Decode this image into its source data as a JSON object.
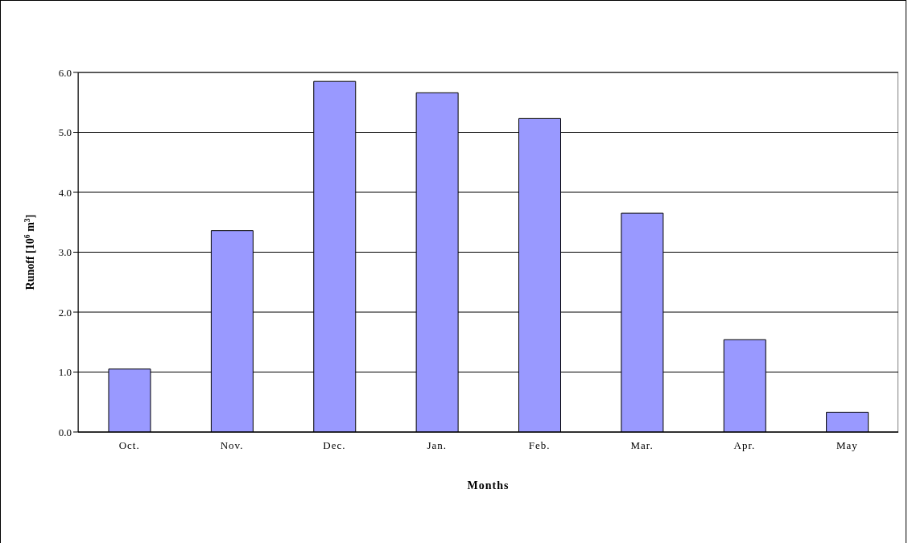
{
  "chart_data": {
    "type": "bar",
    "xlabel": "Months",
    "ylabel": "Runoff [10$^{6}$ m$^{3}$]",
    "categories": [
      "Oct.",
      "Nov.",
      "Dec.",
      "Jan.",
      "Feb.",
      "Mar.",
      "Apr.",
      "May"
    ],
    "values": [
      1.05,
      3.36,
      5.85,
      5.66,
      5.23,
      3.65,
      1.54,
      0.33
    ],
    "color": "#9999ff",
    "ylim": [
      0,
      6
    ],
    "yticks": [
      {
        "value": 0,
        "label": "0.0"
      },
      {
        "value": 1,
        "label": "1.0"
      },
      {
        "value": 2,
        "label": "2.0"
      },
      {
        "value": 3,
        "label": "3.0"
      },
      {
        "value": 4,
        "label": "4.0"
      },
      {
        "value": 5,
        "label": "5.0"
      },
      {
        "value": 6,
        "label": "6.0"
      }
    ],
    "grid": "y"
  }
}
